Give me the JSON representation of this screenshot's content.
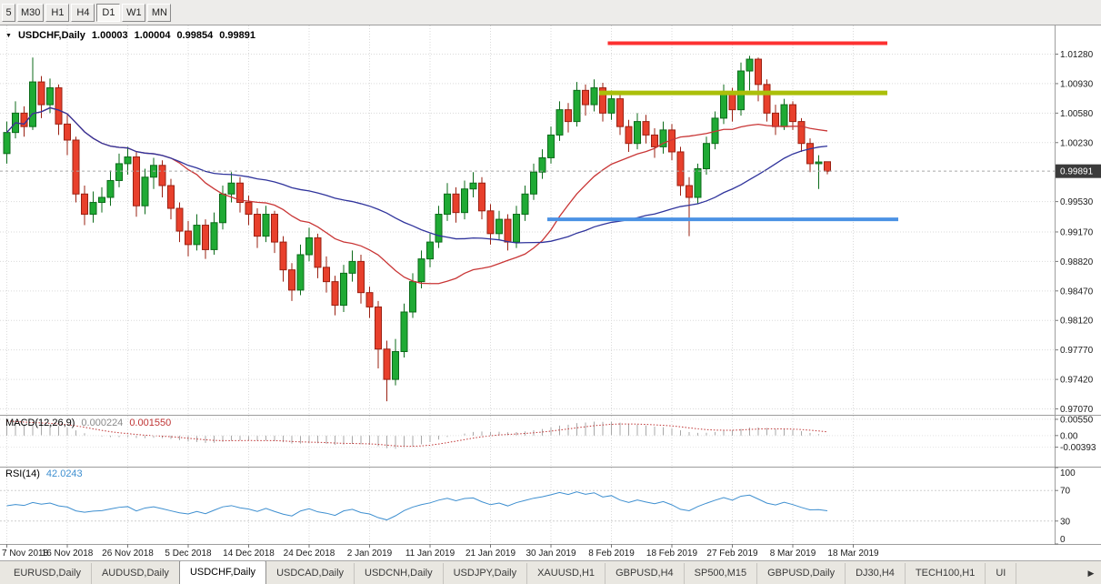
{
  "toolbar": {
    "items": [
      "5",
      "M30",
      "H1",
      "H4",
      "D1",
      "W1",
      "MN"
    ],
    "active": "D1"
  },
  "chart": {
    "symbol_label": "USDCHF,Daily",
    "ohlc": {
      "open": "1.00003",
      "high": "1.00004",
      "low": "0.99854",
      "close": "0.99891"
    },
    "current_price": "0.99891",
    "dropdown_icon": "▼",
    "price_axis": [
      "1.01280",
      "1.00930",
      "1.00580",
      "1.00230",
      "0.99530",
      "0.99170",
      "0.98820",
      "0.98470",
      "0.98120",
      "0.97770",
      "0.97420",
      "0.97070"
    ],
    "colors": {
      "bull": "#1faa34",
      "bull_border": "#0c6b1a",
      "bear": "#e8402c",
      "bear_border": "#9a2012",
      "ma_fast": "#c93636",
      "ma_slow": "#30349c",
      "grid": "#dadada",
      "rsi": "#3e8fd0",
      "macd_hist": "#a8a8a8",
      "macd_signal": "#bf3434",
      "badge_bg": "#3b3b3b",
      "hline_red": "#fd3131",
      "hline_olive": "#abbf0a",
      "hline_blue": "#4b92e4"
    }
  },
  "chart_data": {
    "type": "candlestick",
    "symbol": "USDCHF",
    "timeframe": "Daily",
    "y_range": [
      0.97,
      1.0162
    ],
    "x_labels": [
      "7 Nov 2018",
      "16 Nov 2018",
      "26 Nov 2018",
      "5 Dec 2018",
      "14 Dec 2018",
      "24 Dec 2018",
      "2 Jan 2019",
      "11 Jan 2019",
      "21 Jan 2019",
      "30 Jan 2019",
      "8 Feb 2019",
      "18 Feb 2019",
      "27 Feb 2019",
      "8 Mar 2019",
      "18 Mar 2019"
    ],
    "candles": [
      [
        1.001,
        1.0048,
        0.9998,
        1.0035
      ],
      [
        1.0035,
        1.0072,
        1.0028,
        1.0058
      ],
      [
        1.0058,
        1.0066,
        1.003,
        1.0042
      ],
      [
        1.0042,
        1.0124,
        1.0038,
        1.0095
      ],
      [
        1.0095,
        1.0102,
        1.0052,
        1.0068
      ],
      [
        1.0068,
        1.0099,
        1.0058,
        1.0088
      ],
      [
        1.0088,
        1.0092,
        1.0032,
        1.0045
      ],
      [
        1.0045,
        1.0056,
        1.0008,
        1.0026
      ],
      [
        1.0026,
        1.003,
        0.9952,
        0.9962
      ],
      [
        0.9962,
        0.9972,
        0.9925,
        0.9938
      ],
      [
        0.9938,
        0.9965,
        0.9928,
        0.9952
      ],
      [
        0.9952,
        0.997,
        0.994,
        0.9958
      ],
      [
        0.9958,
        0.999,
        0.9948,
        0.9978
      ],
      [
        0.9978,
        1.001,
        0.997,
        0.9998
      ],
      [
        0.9998,
        1.0018,
        0.9985,
        1.0006
      ],
      [
        1.0006,
        1.0012,
        0.9935,
        0.9948
      ],
      [
        0.9948,
        0.9992,
        0.9938,
        0.9982
      ],
      [
        0.9982,
        1.0005,
        0.9968,
        0.9996
      ],
      [
        0.9996,
        1.0002,
        0.9958,
        0.9972
      ],
      [
        0.9972,
        0.998,
        0.9932,
        0.9945
      ],
      [
        0.9945,
        0.9952,
        0.9905,
        0.9918
      ],
      [
        0.9918,
        0.993,
        0.9888,
        0.9902
      ],
      [
        0.9902,
        0.9938,
        0.9895,
        0.9925
      ],
      [
        0.9925,
        0.9932,
        0.9885,
        0.9896
      ],
      [
        0.9896,
        0.994,
        0.989,
        0.9928
      ],
      [
        0.9928,
        0.9972,
        0.992,
        0.9962
      ],
      [
        0.9962,
        0.9988,
        0.9952,
        0.9975
      ],
      [
        0.9975,
        0.9982,
        0.994,
        0.9952
      ],
      [
        0.9952,
        0.996,
        0.9925,
        0.9938
      ],
      [
        0.9938,
        0.9945,
        0.9898,
        0.9912
      ],
      [
        0.9912,
        0.9948,
        0.9905,
        0.9938
      ],
      [
        0.9938,
        0.9942,
        0.9892,
        0.9905
      ],
      [
        0.9905,
        0.9912,
        0.9858,
        0.9872
      ],
      [
        0.9872,
        0.988,
        0.9835,
        0.9848
      ],
      [
        0.9848,
        0.9902,
        0.9842,
        0.989
      ],
      [
        0.989,
        0.9922,
        0.9882,
        0.991
      ],
      [
        0.991,
        0.9915,
        0.9862,
        0.9875
      ],
      [
        0.9875,
        0.9888,
        0.9845,
        0.9858
      ],
      [
        0.9858,
        0.9865,
        0.9818,
        0.983
      ],
      [
        0.983,
        0.9878,
        0.9822,
        0.9868
      ],
      [
        0.9868,
        0.9895,
        0.9858,
        0.9882
      ],
      [
        0.9882,
        0.989,
        0.9832,
        0.9845
      ],
      [
        0.9845,
        0.9852,
        0.9815,
        0.9828
      ],
      [
        0.9828,
        0.9835,
        0.9755,
        0.9778
      ],
      [
        0.9778,
        0.9788,
        0.9716,
        0.9742
      ],
      [
        0.9742,
        0.979,
        0.9735,
        0.9775
      ],
      [
        0.9775,
        0.9832,
        0.9768,
        0.9822
      ],
      [
        0.9822,
        0.9868,
        0.9815,
        0.9858
      ],
      [
        0.9858,
        0.9895,
        0.985,
        0.9885
      ],
      [
        0.9885,
        0.9915,
        0.9875,
        0.9905
      ],
      [
        0.9905,
        0.9948,
        0.9898,
        0.9938
      ],
      [
        0.9938,
        0.9975,
        0.993,
        0.9962
      ],
      [
        0.9962,
        0.997,
        0.9928,
        0.994
      ],
      [
        0.994,
        0.9978,
        0.9932,
        0.9968
      ],
      [
        0.9968,
        0.9988,
        0.9958,
        0.9975
      ],
      [
        0.9975,
        0.9982,
        0.9932,
        0.9942
      ],
      [
        0.9942,
        0.995,
        0.9902,
        0.9915
      ],
      [
        0.9915,
        0.9942,
        0.9908,
        0.9932
      ],
      [
        0.9932,
        0.9938,
        0.9895,
        0.9905
      ],
      [
        0.9905,
        0.9948,
        0.9898,
        0.9938
      ],
      [
        0.9938,
        0.9972,
        0.993,
        0.9962
      ],
      [
        0.9962,
        0.9998,
        0.9955,
        0.9988
      ],
      [
        0.9988,
        1.0015,
        0.998,
        1.0005
      ],
      [
        1.0005,
        1.0042,
        0.9998,
        1.0032
      ],
      [
        1.0032,
        1.0072,
        1.0025,
        1.0062
      ],
      [
        1.0062,
        1.007,
        1.0035,
        1.0048
      ],
      [
        1.0048,
        1.0095,
        1.0042,
        1.0085
      ],
      [
        1.0085,
        1.0092,
        1.0055,
        1.0068
      ],
      [
        1.0068,
        1.0098,
        1.006,
        1.0088
      ],
      [
        1.0088,
        1.0094,
        1.0048,
        1.0058
      ],
      [
        1.0058,
        1.0085,
        1.005,
        1.0075
      ],
      [
        1.0075,
        1.008,
        1.0032,
        1.0042
      ],
      [
        1.0042,
        1.005,
        1.0012,
        1.0022
      ],
      [
        1.0022,
        1.0058,
        1.0015,
        1.0048
      ],
      [
        1.0048,
        1.0056,
        1.0022,
        1.0032
      ],
      [
        1.0032,
        1.004,
        1.0005,
        1.0018
      ],
      [
        1.0018,
        1.0048,
        1.001,
        1.0038
      ],
      [
        1.0038,
        1.0045,
        1.0002,
        1.0012
      ],
      [
        1.0012,
        1.0018,
        0.996,
        0.9972
      ],
      [
        0.9972,
        0.9982,
        0.9912,
        0.9958
      ],
      [
        0.9958,
        0.9998,
        0.995,
        0.9992
      ],
      [
        0.9992,
        1.003,
        0.9985,
        1.0022
      ],
      [
        1.0022,
        1.006,
        1.0015,
        1.0052
      ],
      [
        1.0052,
        1.0092,
        1.0045,
        1.0082
      ],
      [
        1.0082,
        1.0088,
        1.0048,
        1.0062
      ],
      [
        1.0062,
        1.0118,
        1.0055,
        1.0108
      ],
      [
        1.0108,
        1.0126,
        1.0085,
        1.0122
      ],
      [
        1.0122,
        1.0124,
        1.0072,
        1.0092
      ],
      [
        1.0092,
        1.0098,
        1.0048,
        1.0058
      ],
      [
        1.0058,
        1.0068,
        1.0032,
        1.0042
      ],
      [
        1.0042,
        1.0075,
        1.0038,
        1.0068
      ],
      [
        1.0068,
        1.0072,
        1.0038,
        1.0048
      ],
      [
        1.0048,
        1.0052,
        1.0012,
        1.0022
      ],
      [
        1.0022,
        1.0028,
        0.9988,
        0.9998
      ],
      [
        0.9998,
        1.0008,
        0.9968,
        1.0
      ],
      [
        1.00003,
        1.00004,
        0.99854,
        0.99891
      ]
    ],
    "moving_averages": [
      {
        "period": 20,
        "color_key": "ma_fast"
      },
      {
        "period": 45,
        "color_key": "ma_slow"
      }
    ],
    "hlines": [
      {
        "label": "upper-resistance-line",
        "price": 1.0141,
        "from_index": 70,
        "to_x": 976,
        "color_key": "hline_red",
        "width": 4
      },
      {
        "label": "breakout-level-line",
        "price": 1.0082,
        "from_index": 69,
        "to_x": 976,
        "color_key": "hline_olive",
        "width": 5
      },
      {
        "label": "support-line",
        "price": 0.9932,
        "from_index": 63,
        "to_x": 988,
        "color_key": "hline_blue",
        "width": 4
      }
    ]
  },
  "macd": {
    "label": "MACD(12,26,9)",
    "fast": 12,
    "slow": 26,
    "signal": 9,
    "value_main": "0.000224",
    "value_signal": "0.001550",
    "scale": [
      "0.00550",
      "0.00",
      "-0.00393"
    ],
    "range": [
      -0.0102,
      0.0064
    ]
  },
  "rsi": {
    "label": "RSI(14)",
    "period": 14,
    "value": "42.0243",
    "scale": [
      "100",
      "70",
      "30",
      "0"
    ],
    "levels": [
      70,
      30
    ]
  },
  "tabs": {
    "items": [
      "EURUSD,Daily",
      "AUDUSD,Daily",
      "USDCHF,Daily",
      "USDCAD,Daily",
      "USDCNH,Daily",
      "USDJPY,Daily",
      "XAUUSD,H1",
      "GBPUSD,H4",
      "SP500,M15",
      "GBPUSD,Daily",
      "DJ30,H4",
      "TECH100,H1",
      "UI"
    ],
    "active_index": 2,
    "scroll_right_icon": "▶"
  }
}
